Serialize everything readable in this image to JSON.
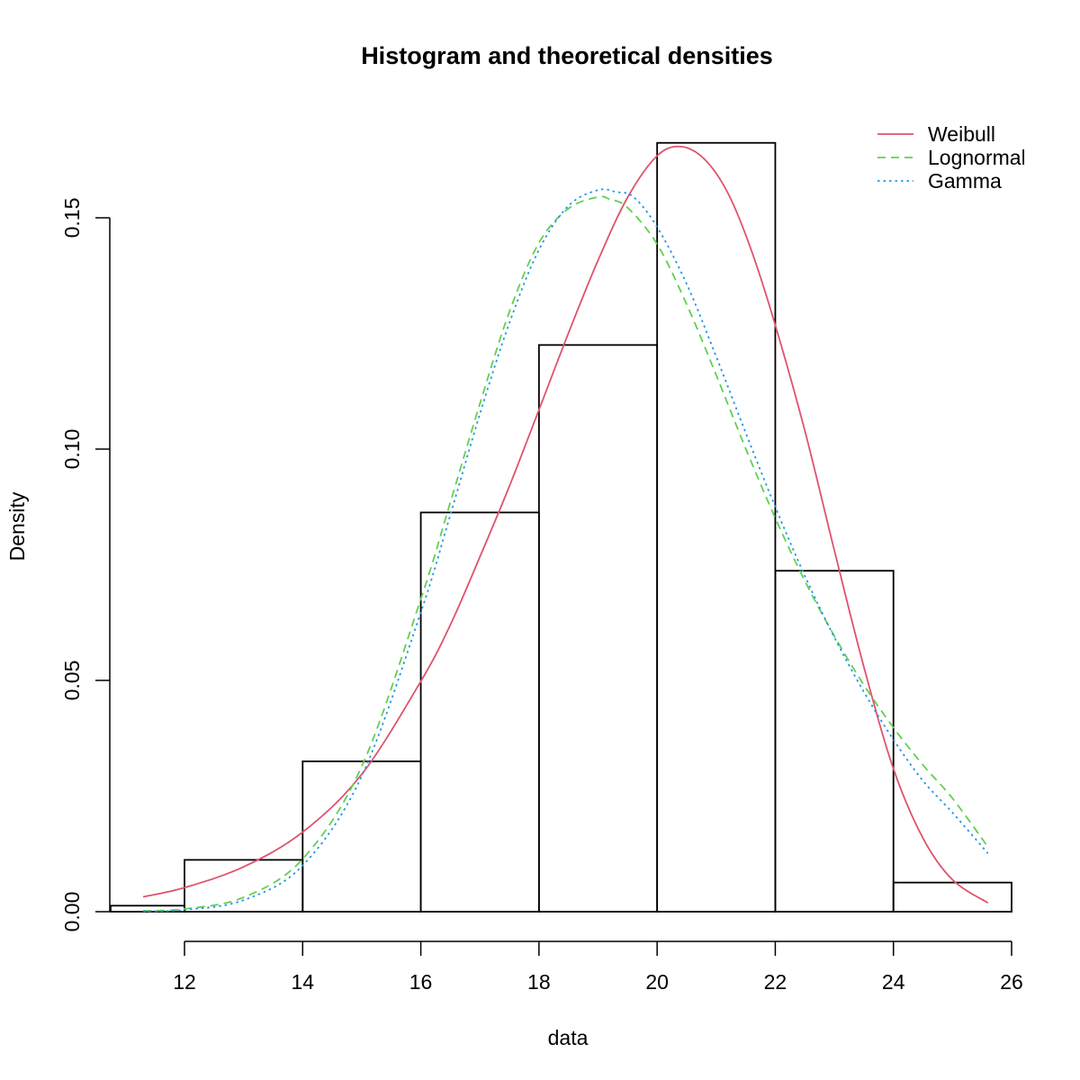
{
  "chart_data": {
    "type": "bar",
    "title": "Histogram and theoretical densities",
    "xlabel": "data",
    "ylabel": "Density",
    "xlim": [
      10.75,
      26.0
    ],
    "ylim": [
      0,
      0.166
    ],
    "x_ticks": [
      12,
      14,
      16,
      18,
      20,
      22,
      24,
      26
    ],
    "y_ticks": [
      0.0,
      0.05,
      0.1,
      0.15
    ],
    "y_tick_labels": [
      "0.00",
      "0.05",
      "0.10",
      "0.15"
    ],
    "bins": [
      {
        "start": 10.75,
        "end": 12,
        "density": 0.0013
      },
      {
        "start": 12,
        "end": 14,
        "density": 0.0112
      },
      {
        "start": 14,
        "end": 16,
        "density": 0.0325
      },
      {
        "start": 16,
        "end": 18,
        "density": 0.0863
      },
      {
        "start": 18,
        "end": 20,
        "density": 0.1225
      },
      {
        "start": 20,
        "end": 22,
        "density": 0.1662
      },
      {
        "start": 22,
        "end": 24,
        "density": 0.0737
      },
      {
        "start": 24,
        "end": 26,
        "density": 0.0063
      }
    ],
    "series": [
      {
        "name": "Weibull",
        "color": "#DF536B",
        "dash": "solid",
        "x": [
          11.3,
          12,
          13,
          14,
          15,
          16,
          16.5,
          17,
          17.5,
          18,
          18.5,
          19,
          19.5,
          20,
          20.4,
          20.8,
          21.2,
          21.6,
          22,
          22.5,
          23,
          23.5,
          24,
          24.5,
          25,
          25.6
        ],
        "y": [
          0.0032,
          0.0052,
          0.0097,
          0.0172,
          0.0297,
          0.0498,
          0.062,
          0.0767,
          0.092,
          0.1085,
          0.1251,
          0.1408,
          0.1544,
          0.1634,
          0.1654,
          0.1627,
          0.1553,
          0.1428,
          0.1268,
          0.104,
          0.0781,
          0.0529,
          0.0309,
          0.0159,
          0.0069,
          0.0019
        ]
      },
      {
        "name": "Lognormal",
        "color": "#61D04F",
        "dash": "dashed",
        "x": [
          11.3,
          12,
          13,
          14,
          15,
          16,
          16.5,
          17,
          17.5,
          18,
          18.5,
          19,
          19.2,
          19.5,
          20,
          20.5,
          21,
          21.5,
          22,
          22.5,
          23,
          23.5,
          24,
          24.5,
          25,
          25.6
        ],
        "y": [
          0.0002,
          0.0006,
          0.0031,
          0.0114,
          0.0314,
          0.0676,
          0.0885,
          0.1098,
          0.1297,
          0.1446,
          0.152,
          0.1545,
          0.154,
          0.1522,
          0.1443,
          0.1313,
          0.116,
          0.1001,
          0.0851,
          0.0715,
          0.0596,
          0.049,
          0.0398,
          0.0317,
          0.0245,
          0.014
        ]
      },
      {
        "name": "Gamma",
        "color": "#2297E6",
        "dash": "dotted",
        "x": [
          11.3,
          12,
          13,
          14,
          15,
          16,
          16.5,
          17,
          17.5,
          18,
          18.5,
          19,
          19.3,
          19.6,
          20,
          20.5,
          21,
          21.5,
          22,
          22.5,
          23,
          23.5,
          24,
          24.5,
          25,
          25.6
        ],
        "y": [
          0.0001,
          0.0004,
          0.0025,
          0.01,
          0.0293,
          0.0647,
          0.0858,
          0.1076,
          0.1273,
          0.1431,
          0.1526,
          0.156,
          0.1556,
          0.1545,
          0.148,
          0.1357,
          0.12,
          0.1035,
          0.0875,
          0.0726,
          0.0593,
          0.0475,
          0.0372,
          0.0283,
          0.0214,
          0.0126
        ]
      }
    ],
    "legend": {
      "position": "top-right",
      "entries": [
        "Weibull",
        "Lognormal",
        "Gamma"
      ]
    }
  }
}
